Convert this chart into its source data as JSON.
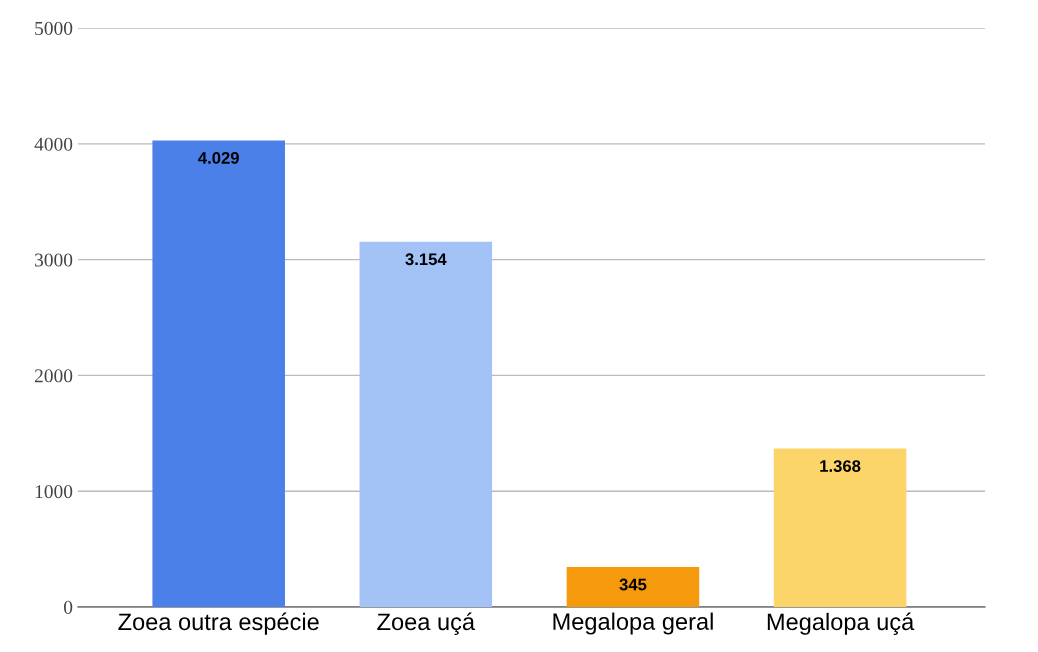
{
  "chart_data": {
    "type": "bar",
    "categories": [
      "Zoea outra espécie",
      "Zoea uçá",
      "Megalopa geral",
      "Megalopa uçá"
    ],
    "values": [
      4029,
      3154,
      345,
      1368
    ],
    "colors": [
      "#4a80e8",
      "#a3c2f5",
      "#f59a0c",
      "#fcd56a"
    ],
    "value_labels": [
      "4.029",
      "3.154",
      "345",
      "1.368"
    ],
    "ylim": [
      0,
      5000
    ],
    "yticks": [
      0,
      1000,
      2000,
      3000,
      4000,
      5000
    ],
    "grid": "y",
    "legend": false
  }
}
